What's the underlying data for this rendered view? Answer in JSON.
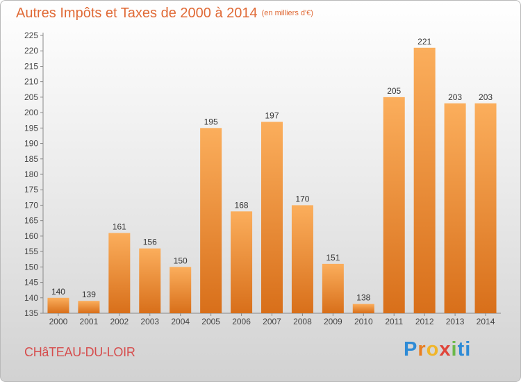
{
  "title": "Autres Impôts et Taxes de 2000 à 2014",
  "unit": "(en milliers d'€)",
  "location": "CHâTEAU-DU-LOIR",
  "logo": {
    "text": "Proxiti",
    "letters": [
      "P",
      "r",
      "o",
      "x",
      "i",
      "ti"
    ]
  },
  "colors": {
    "bar_light": "#fbae5c",
    "bar_dark": "#d86f1a",
    "title": "#e06a36",
    "location": "#d64d4d"
  },
  "chart_data": {
    "type": "bar",
    "title": "Autres Impôts et Taxes de 2000 à 2014",
    "xlabel": "",
    "ylabel": "",
    "categories": [
      "2000",
      "2001",
      "2002",
      "2003",
      "2004",
      "2005",
      "2006",
      "2007",
      "2008",
      "2009",
      "2010",
      "2011",
      "2012",
      "2013",
      "2014"
    ],
    "values": [
      140,
      139,
      161,
      156,
      150,
      195,
      168,
      197,
      170,
      151,
      138,
      205,
      221,
      203,
      203
    ],
    "ylim": [
      135,
      225
    ],
    "yticks": [
      135,
      140,
      145,
      150,
      155,
      160,
      165,
      170,
      175,
      180,
      185,
      190,
      195,
      200,
      205,
      210,
      215,
      220,
      225
    ],
    "grid": false
  }
}
